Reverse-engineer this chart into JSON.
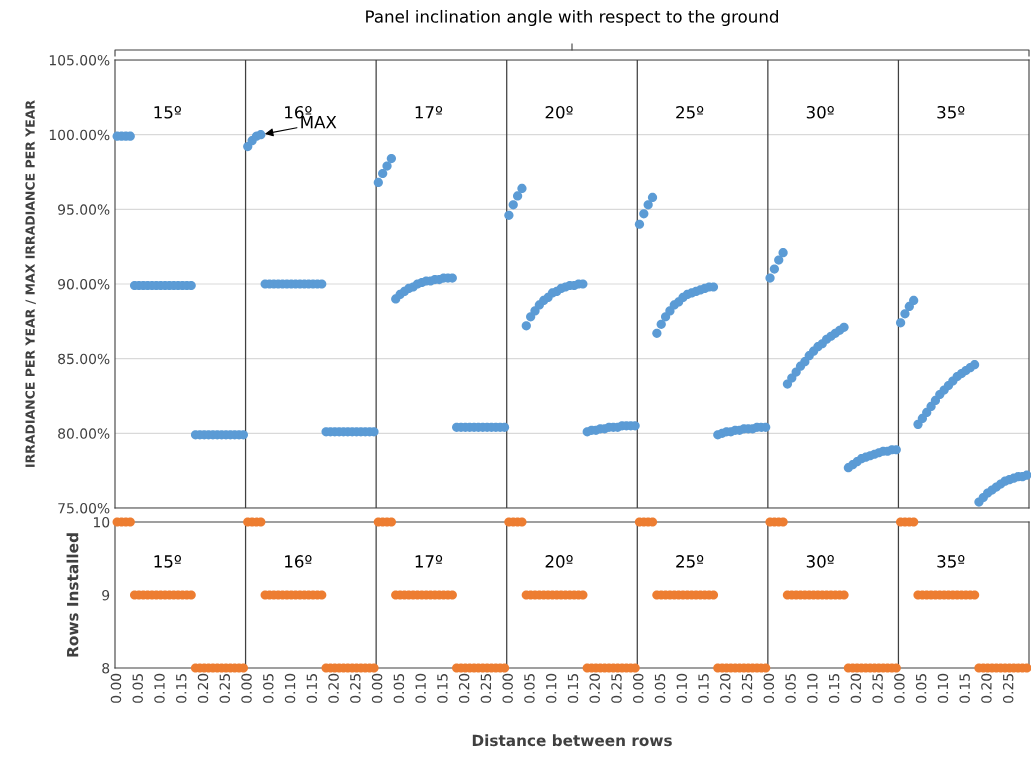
{
  "chart_data": [
    {
      "type": "scatter",
      "title": "Panel inclination angle with respect to the ground",
      "ylabel": "IRRADIANCE PER YEAR / MAX IRRADIANCE PER YEAR",
      "tick_labels": "y",
      "grid": "y",
      "marker": "circle",
      "categories": [
        "0.00",
        null,
        null,
        null,
        null,
        "0.05",
        null,
        null,
        null,
        null,
        "0.10",
        null,
        null,
        null,
        null,
        "0.15",
        null,
        null,
        null,
        null,
        "0.20",
        null,
        null,
        null,
        null,
        "0.25",
        null,
        null,
        null,
        null,
        "0.00",
        null,
        null,
        null,
        null,
        "0.05",
        null,
        null,
        null,
        null,
        "0.10",
        null,
        null,
        null,
        null,
        "0.15",
        null,
        null,
        null,
        null,
        "0.20",
        null,
        null,
        null,
        null,
        "0.25",
        null,
        null,
        null,
        null,
        "0.00",
        null,
        null,
        null,
        null,
        "0.05",
        null,
        null,
        null,
        null,
        "0.10",
        null,
        null,
        null,
        null,
        "0.15",
        null,
        null,
        null,
        null,
        "0.20",
        null,
        null,
        null,
        null,
        "0.25",
        null,
        null,
        null,
        null,
        "0.00",
        null,
        null,
        null,
        null,
        "0.05",
        null,
        null,
        null,
        null,
        "0.10",
        null,
        null,
        null,
        null,
        "0.15",
        null,
        null,
        null,
        null,
        "0.20",
        null,
        null,
        null,
        null,
        "0.25",
        null,
        null,
        null,
        null,
        "0.00",
        null,
        null,
        null,
        null,
        "0.05",
        null,
        null,
        null,
        null,
        "0.10",
        null,
        null,
        null,
        null,
        "0.15",
        null,
        null,
        null,
        null,
        "0.20",
        null,
        null,
        null,
        null,
        "0.25",
        null,
        null,
        null,
        null,
        "0.00",
        null,
        null,
        null,
        null,
        "0.05",
        null,
        null,
        null,
        null,
        "0.10",
        null,
        null,
        null,
        null,
        "0.15",
        null,
        null,
        null,
        null,
        "0.20",
        null,
        null,
        null,
        null,
        "0.25",
        null,
        null,
        null,
        null,
        "0.00",
        null,
        null,
        null,
        null,
        "0.05",
        null,
        null,
        null,
        null,
        "0.10",
        null,
        null,
        null,
        null,
        "0.15",
        null,
        null,
        null,
        null,
        "0.20",
        null,
        null,
        null,
        null,
        "0.25",
        null,
        null,
        null,
        null
      ],
      "ylim": [
        75,
        105
      ],
      "yticks": [
        {
          "value": 75,
          "label": "75.00%"
        },
        {
          "value": 80,
          "label": "80.00%"
        },
        {
          "value": 85,
          "label": "85.00%"
        },
        {
          "value": 90,
          "label": "90.00%"
        },
        {
          "value": 95,
          "label": "95.00%"
        },
        {
          "value": 100,
          "label": "100.00%"
        },
        {
          "value": 105,
          "label": "105.00%"
        }
      ],
      "annotations": [
        "15º",
        "16º",
        "17º",
        "20º",
        "25º",
        "30º",
        "35º",
        "MAX"
      ],
      "series": [
        {
          "color": "#5b9bd5",
          "values": [
            99.9,
            99.9,
            99.9,
            99.9,
            89.9,
            89.9,
            89.9,
            89.9,
            89.9,
            89.9,
            89.9,
            89.9,
            89.9,
            89.9,
            89.9,
            89.9,
            89.9,
            89.9,
            79.9,
            79.9,
            79.9,
            79.9,
            79.9,
            79.9,
            79.9,
            79.9,
            79.9,
            79.9,
            79.9,
            79.9,
            99.2,
            99.6,
            99.9,
            100.0,
            90.0,
            90.0,
            90.0,
            90.0,
            90.0,
            90.0,
            90.0,
            90.0,
            90.0,
            90.0,
            90.0,
            90.0,
            90.0,
            90.0,
            80.1,
            80.1,
            80.1,
            80.1,
            80.1,
            80.1,
            80.1,
            80.1,
            80.1,
            80.1,
            80.1,
            80.1,
            96.8,
            97.4,
            97.9,
            98.4,
            89.0,
            89.3,
            89.5,
            89.7,
            89.8,
            90.0,
            90.1,
            90.2,
            90.2,
            90.3,
            90.3,
            90.4,
            90.4,
            90.4,
            80.4,
            80.4,
            80.4,
            80.4,
            80.4,
            80.4,
            80.4,
            80.4,
            80.4,
            80.4,
            80.4,
            80.4,
            94.6,
            95.3,
            95.9,
            96.4,
            87.2,
            87.8,
            88.2,
            88.6,
            88.9,
            89.1,
            89.4,
            89.5,
            89.7,
            89.8,
            89.9,
            89.9,
            90.0,
            90.0,
            80.1,
            80.2,
            80.2,
            80.3,
            80.3,
            80.4,
            80.4,
            80.4,
            80.5,
            80.5,
            80.5,
            80.5,
            94.0,
            94.7,
            95.3,
            95.8,
            86.7,
            87.3,
            87.8,
            88.2,
            88.6,
            88.8,
            89.1,
            89.3,
            89.4,
            89.5,
            89.6,
            89.7,
            89.8,
            89.8,
            79.9,
            80.0,
            80.1,
            80.1,
            80.2,
            80.2,
            80.3,
            80.3,
            80.3,
            80.4,
            80.4,
            80.4,
            90.4,
            91.0,
            91.6,
            92.1,
            83.3,
            83.7,
            84.1,
            84.5,
            84.8,
            85.2,
            85.5,
            85.8,
            86.0,
            86.3,
            86.5,
            86.7,
            86.9,
            87.1,
            77.7,
            77.9,
            78.1,
            78.3,
            78.4,
            78.5,
            78.6,
            78.7,
            78.8,
            78.8,
            78.9,
            78.9,
            87.4,
            88.0,
            88.5,
            88.9,
            80.6,
            81.0,
            81.4,
            81.8,
            82.2,
            82.6,
            82.9,
            83.2,
            83.5,
            83.8,
            84.0,
            84.2,
            84.4,
            84.6,
            75.4,
            75.7,
            76.0,
            76.2,
            76.4,
            76.6,
            76.8,
            76.9,
            77.0,
            77.1,
            77.1,
            77.2
          ]
        }
      ]
    },
    {
      "type": "scatter",
      "xlabel": "Distance between rows",
      "ylabel": "Rows Installed",
      "grid": false,
      "marker": "circle",
      "categories": [
        "0.00",
        null,
        null,
        null,
        null,
        "0.05",
        null,
        null,
        null,
        null,
        "0.10",
        null,
        null,
        null,
        null,
        "0.15",
        null,
        null,
        null,
        null,
        "0.20",
        null,
        null,
        null,
        null,
        "0.25",
        null,
        null,
        null,
        null,
        "0.00",
        null,
        null,
        null,
        null,
        "0.05",
        null,
        null,
        null,
        null,
        "0.10",
        null,
        null,
        null,
        null,
        "0.15",
        null,
        null,
        null,
        null,
        "0.20",
        null,
        null,
        null,
        null,
        "0.25",
        null,
        null,
        null,
        null,
        "0.00",
        null,
        null,
        null,
        null,
        "0.05",
        null,
        null,
        null,
        null,
        "0.10",
        null,
        null,
        null,
        null,
        "0.15",
        null,
        null,
        null,
        null,
        "0.20",
        null,
        null,
        null,
        null,
        "0.25",
        null,
        null,
        null,
        null,
        "0.00",
        null,
        null,
        null,
        null,
        "0.05",
        null,
        null,
        null,
        null,
        "0.10",
        null,
        null,
        null,
        null,
        "0.15",
        null,
        null,
        null,
        null,
        "0.20",
        null,
        null,
        null,
        null,
        "0.25",
        null,
        null,
        null,
        null,
        "0.00",
        null,
        null,
        null,
        null,
        "0.05",
        null,
        null,
        null,
        null,
        "0.10",
        null,
        null,
        null,
        null,
        "0.15",
        null,
        null,
        null,
        null,
        "0.20",
        null,
        null,
        null,
        null,
        "0.25",
        null,
        null,
        null,
        null,
        "0.00",
        null,
        null,
        null,
        null,
        "0.05",
        null,
        null,
        null,
        null,
        "0.10",
        null,
        null,
        null,
        null,
        "0.15",
        null,
        null,
        null,
        null,
        "0.20",
        null,
        null,
        null,
        null,
        "0.25",
        null,
        null,
        null,
        null,
        "0.00",
        null,
        null,
        null,
        null,
        "0.05",
        null,
        null,
        null,
        null,
        "0.10",
        null,
        null,
        null,
        null,
        "0.15",
        null,
        null,
        null,
        null,
        "0.20",
        null,
        null,
        null,
        null,
        "0.25",
        null,
        null,
        null,
        null
      ],
      "ylim": [
        8,
        10
      ],
      "yticks": [
        8,
        9,
        10
      ],
      "annotations": [
        "15º",
        "16º",
        "17º",
        "20º",
        "25º",
        "30º",
        "35º"
      ],
      "series": [
        {
          "color": "#ed7d31",
          "values": [
            10,
            10,
            10,
            10,
            9,
            9,
            9,
            9,
            9,
            9,
            9,
            9,
            9,
            9,
            9,
            9,
            9,
            9,
            8,
            8,
            8,
            8,
            8,
            8,
            8,
            8,
            8,
            8,
            8,
            8,
            10,
            10,
            10,
            10,
            9,
            9,
            9,
            9,
            9,
            9,
            9,
            9,
            9,
            9,
            9,
            9,
            9,
            9,
            8,
            8,
            8,
            8,
            8,
            8,
            8,
            8,
            8,
            8,
            8,
            8,
            10,
            10,
            10,
            10,
            9,
            9,
            9,
            9,
            9,
            9,
            9,
            9,
            9,
            9,
            9,
            9,
            9,
            9,
            8,
            8,
            8,
            8,
            8,
            8,
            8,
            8,
            8,
            8,
            8,
            8,
            10,
            10,
            10,
            10,
            9,
            9,
            9,
            9,
            9,
            9,
            9,
            9,
            9,
            9,
            9,
            9,
            9,
            9,
            8,
            8,
            8,
            8,
            8,
            8,
            8,
            8,
            8,
            8,
            8,
            8,
            10,
            10,
            10,
            10,
            9,
            9,
            9,
            9,
            9,
            9,
            9,
            9,
            9,
            9,
            9,
            9,
            9,
            9,
            8,
            8,
            8,
            8,
            8,
            8,
            8,
            8,
            8,
            8,
            8,
            8,
            10,
            10,
            10,
            10,
            9,
            9,
            9,
            9,
            9,
            9,
            9,
            9,
            9,
            9,
            9,
            9,
            9,
            9,
            8,
            8,
            8,
            8,
            8,
            8,
            8,
            8,
            8,
            8,
            8,
            8,
            10,
            10,
            10,
            10,
            9,
            9,
            9,
            9,
            9,
            9,
            9,
            9,
            9,
            9,
            9,
            9,
            9,
            9,
            8,
            8,
            8,
            8,
            8,
            8,
            8,
            8,
            8,
            8,
            8,
            8
          ]
        }
      ]
    }
  ]
}
